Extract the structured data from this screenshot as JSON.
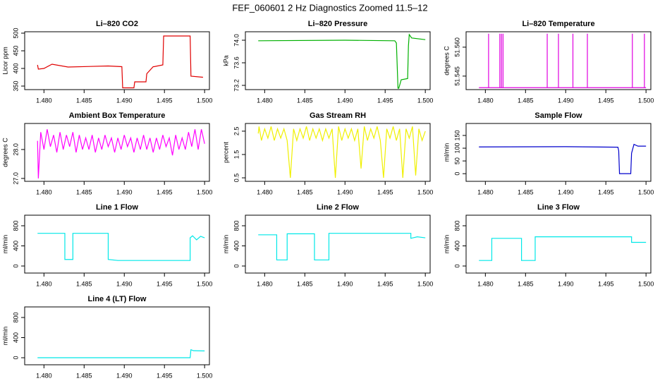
{
  "title": "FEF_060601  2 Hz Diagnostics Zoomed 11.5–12",
  "chart_data": [
    {
      "type": "line",
      "title": "Li–820 CO2",
      "ylabel": "Licor ppm",
      "x": [
        1.4792,
        1.4793,
        1.48,
        1.481,
        1.483,
        1.488,
        1.4897,
        1.4898,
        1.4912,
        1.4913,
        1.4927,
        1.4928,
        1.4936,
        1.4937,
        1.4948,
        1.4949,
        1.4982,
        1.4983,
        1.4998
      ],
      "series": [
        {
          "color": "#e00000",
          "values": [
            410,
            398,
            400,
            412,
            404,
            407,
            405,
            345,
            345,
            362,
            362,
            385,
            405,
            405,
            410,
            492,
            492,
            378,
            375
          ]
        }
      ],
      "xlim": [
        1.4776,
        1.5006
      ],
      "xticks": [
        {
          "value": 1.48,
          "label": "1.480"
        },
        1.485,
        {
          "value": 1.49,
          "label": "1.490"
        },
        1.495,
        {
          "value": 1.5,
          "label": "1.500"
        }
      ],
      "ylim": [
        340,
        504
      ],
      "yticks": [
        350,
        400,
        450,
        500
      ]
    },
    {
      "type": "line",
      "title": "Li–820 Pressure",
      "ylabel": "kPa",
      "x": [
        1.4792,
        1.49,
        1.4962,
        1.4964,
        1.4966,
        1.4967,
        1.497,
        1.4978,
        1.4979,
        1.498,
        1.4983,
        1.5
      ],
      "series": [
        {
          "color": "#00b000",
          "values": [
            73.99,
            74.0,
            73.99,
            73.95,
            73.15,
            73.15,
            73.3,
            73.32,
            73.9,
            74.1,
            74.04,
            74.01
          ]
        }
      ],
      "xlim": [
        1.4776,
        1.5006
      ],
      "xticks": [
        {
          "value": 1.48,
          "label": "1.480"
        },
        1.485,
        {
          "value": 1.49,
          "label": "1.490"
        },
        1.495,
        {
          "value": 1.5,
          "label": "1.500"
        }
      ],
      "ylim": [
        73.125,
        74.15
      ],
      "yticks": [
        73.2,
        73.6,
        {
          "value": 74,
          "label": "74.0"
        }
      ]
    },
    {
      "type": "line",
      "title": "Li–820 Temperature",
      "ylabel": "degrees C",
      "x": [
        1.4792,
        1.4804,
        1.4804,
        1.4804,
        1.4818,
        1.4818,
        1.4818,
        1.482,
        1.482,
        1.482,
        1.4822,
        1.4822,
        1.4822,
        1.4877,
        1.4877,
        1.4877,
        1.4891,
        1.4891,
        1.4891,
        1.4909,
        1.4909,
        1.4909,
        1.4927,
        1.4927,
        1.4927,
        1.4983,
        1.4983,
        1.4983,
        1.4998,
        1.4998,
        1.4998,
        1.5
      ],
      "series": [
        {
          "color": "#e000e0",
          "values": [
            51.539,
            51.539,
            51.567,
            51.539,
            51.539,
            51.567,
            51.539,
            51.539,
            51.567,
            51.539,
            51.539,
            51.567,
            51.539,
            51.539,
            51.567,
            51.539,
            51.539,
            51.567,
            51.539,
            51.539,
            51.567,
            51.539,
            51.539,
            51.567,
            51.539,
            51.539,
            51.567,
            51.539,
            51.539,
            51.567,
            51.539,
            51.539
          ]
        }
      ],
      "xlim": [
        1.4776,
        1.5006
      ],
      "xticks": [
        {
          "value": 1.48,
          "label": "1.480"
        },
        1.485,
        {
          "value": 1.49,
          "label": "1.490"
        },
        1.495,
        {
          "value": 1.5,
          "label": "1.500"
        }
      ],
      "ylim": [
        51.538,
        51.568
      ],
      "yticks": [
        51.545,
        {
          "value": 51.56,
          "label": "51.560"
        }
      ]
    },
    {
      "type": "line",
      "title": "Ambient Box Temperature",
      "ylabel": "degrees C",
      "x": [
        1.4792,
        1.4793,
        1.4796,
        1.48,
        1.4804,
        1.4808,
        1.4812,
        1.4816,
        1.482,
        1.4824,
        1.4828,
        1.4832,
        1.4836,
        1.484,
        1.4844,
        1.4848,
        1.4852,
        1.4856,
        1.486,
        1.4864,
        1.4868,
        1.4872,
        1.4876,
        1.488,
        1.4884,
        1.4888,
        1.4892,
        1.4896,
        1.49,
        1.4904,
        1.4908,
        1.4912,
        1.4916,
        1.492,
        1.4924,
        1.4928,
        1.4932,
        1.4936,
        1.494,
        1.4944,
        1.4948,
        1.4952,
        1.4956,
        1.496,
        1.4964,
        1.4968,
        1.4972,
        1.4976,
        1.498,
        1.4984,
        1.4988,
        1.4992,
        1.4996,
        1.5
      ],
      "series": [
        {
          "color": "#ff00ff",
          "values": [
            28.3,
            27.0,
            28.6,
            28.0,
            28.7,
            28.1,
            28.5,
            27.9,
            28.6,
            28.0,
            28.5,
            28.1,
            28.6,
            27.9,
            28.5,
            28.0,
            28.4,
            28.0,
            28.5,
            27.9,
            28.4,
            28.0,
            28.5,
            28.1,
            28.4,
            27.9,
            28.4,
            28.0,
            28.5,
            28.1,
            28.4,
            27.9,
            28.4,
            28.0,
            28.5,
            28.0,
            28.4,
            27.9,
            28.4,
            28.0,
            28.5,
            28.1,
            28.4,
            27.8,
            28.5,
            28.0,
            28.4,
            28.0,
            28.6,
            28.1,
            28.7,
            28.0,
            28.7,
            28.2
          ]
        }
      ],
      "xlim": [
        1.4776,
        1.5006
      ],
      "xticks": [
        {
          "value": 1.48,
          "label": "1.480"
        },
        1.485,
        {
          "value": 1.49,
          "label": "1.490"
        },
        1.495,
        {
          "value": 1.5,
          "label": "1.500"
        }
      ],
      "ylim": [
        26.9,
        28.9
      ],
      "yticks": [
        {
          "value": 27,
          "label": "27.0"
        },
        {
          "value": 28,
          "label": "28.0"
        }
      ]
    },
    {
      "type": "line",
      "title": "Gas Stream RH",
      "ylabel": "percent",
      "x": [
        1.4792,
        1.4793,
        1.4796,
        1.48,
        1.4804,
        1.4808,
        1.4812,
        1.4816,
        1.482,
        1.4824,
        1.4828,
        1.4832,
        1.4836,
        1.484,
        1.4844,
        1.4848,
        1.4852,
        1.4856,
        1.486,
        1.4864,
        1.4868,
        1.4872,
        1.4876,
        1.488,
        1.4884,
        1.4888,
        1.4892,
        1.4896,
        1.49,
        1.4904,
        1.4908,
        1.4912,
        1.4916,
        1.492,
        1.4924,
        1.4928,
        1.4932,
        1.4936,
        1.494,
        1.4944,
        1.4948,
        1.4952,
        1.4956,
        1.496,
        1.4964,
        1.4968,
        1.4972,
        1.4976,
        1.498,
        1.4984,
        1.4988,
        1.4992,
        1.4996,
        1.5
      ],
      "series": [
        {
          "color": "#f0f000",
          "values": [
            2.4,
            2.7,
            2.1,
            2.6,
            2.2,
            2.7,
            2.1,
            2.6,
            2.2,
            2.6,
            2.1,
            0.5,
            2.6,
            2.1,
            2.6,
            2.2,
            2.7,
            2.1,
            2.6,
            2.2,
            2.6,
            2.1,
            2.6,
            2.2,
            2.6,
            0.5,
            2.7,
            2.1,
            2.6,
            2.2,
            2.6,
            2.1,
            2.6,
            0.9,
            2.7,
            2.1,
            2.6,
            2.2,
            2.7,
            2.1,
            0.5,
            2.6,
            2.2,
            2.7,
            2.1,
            2.6,
            0.5,
            2.6,
            2.2,
            2.7,
            0.6,
            2.6,
            2.1,
            2.5
          ]
        }
      ],
      "xlim": [
        1.4776,
        1.5006
      ],
      "xticks": [
        {
          "value": 1.48,
          "label": "1.480"
        },
        1.485,
        {
          "value": 1.49,
          "label": "1.490"
        },
        1.495,
        {
          "value": 1.5,
          "label": "1.500"
        }
      ],
      "ylim": [
        0.35,
        2.83
      ],
      "yticks": [
        0.5,
        1.5,
        2.5
      ]
    },
    {
      "type": "line",
      "title": "Sample Flow",
      "ylabel": "ml/min",
      "x": [
        1.4792,
        1.49,
        1.4965,
        1.4966,
        1.4967,
        1.4981,
        1.4982,
        1.4985,
        1.499,
        1.5
      ],
      "series": [
        {
          "color": "#0000cc",
          "values": [
            105,
            106,
            104,
            90,
            0,
            0,
            80,
            115,
            108,
            108
          ]
        }
      ],
      "xlim": [
        1.4776,
        1.5006
      ],
      "xticks": [
        {
          "value": 1.48,
          "label": "1.480"
        },
        1.485,
        {
          "value": 1.49,
          "label": "1.490"
        },
        1.495,
        {
          "value": 1.5,
          "label": "1.500"
        }
      ],
      "ylim": [
        -30,
        197
      ],
      "yticks": [
        0,
        50,
        100,
        150
      ]
    },
    {
      "type": "line",
      "title": "Line 1 Flow",
      "ylabel": "ml/min",
      "x": [
        1.4792,
        1.4826,
        1.4826,
        1.4836,
        1.4836,
        1.488,
        1.488,
        1.4892,
        1.4982,
        1.4982,
        1.4985,
        1.499,
        1.4995,
        1.5
      ],
      "series": [
        {
          "color": "#00e8e8",
          "values": [
            650,
            650,
            130,
            130,
            650,
            650,
            130,
            110,
            110,
            560,
            600,
            520,
            590,
            560
          ]
        }
      ],
      "xlim": [
        1.4776,
        1.5006
      ],
      "xticks": [
        {
          "value": 1.48,
          "label": "1.480"
        },
        1.485,
        {
          "value": 1.49,
          "label": "1.490"
        },
        1.495,
        {
          "value": 1.5,
          "label": "1.500"
        }
      ],
      "ylim": [
        -140,
        1010
      ],
      "yticks": [
        0,
        400,
        800
      ]
    },
    {
      "type": "line",
      "title": "Line 2 Flow",
      "ylabel": "ml/min",
      "x": [
        1.4792,
        1.4815,
        1.4815,
        1.4828,
        1.4828,
        1.4862,
        1.4862,
        1.488,
        1.488,
        1.4982,
        1.4982,
        1.499,
        1.5
      ],
      "series": [
        {
          "color": "#00e8e8",
          "values": [
            620,
            620,
            120,
            120,
            640,
            640,
            120,
            120,
            650,
            650,
            550,
            580,
            560
          ]
        }
      ],
      "xlim": [
        1.4776,
        1.5006
      ],
      "xticks": [
        {
          "value": 1.48,
          "label": "1.480"
        },
        1.485,
        {
          "value": 1.49,
          "label": "1.490"
        },
        1.495,
        {
          "value": 1.5,
          "label": "1.500"
        }
      ],
      "ylim": [
        -140,
        1010
      ],
      "yticks": [
        0,
        400,
        800
      ]
    },
    {
      "type": "line",
      "title": "Line 3 Flow",
      "ylabel": "ml/min",
      "x": [
        1.4792,
        1.4808,
        1.4808,
        1.4845,
        1.4845,
        1.4862,
        1.4862,
        1.4982,
        1.4982,
        1.5
      ],
      "series": [
        {
          "color": "#00e8e8",
          "values": [
            110,
            110,
            550,
            550,
            110,
            110,
            580,
            580,
            470,
            470
          ]
        }
      ],
      "xlim": [
        1.4776,
        1.5006
      ],
      "xticks": [
        {
          "value": 1.48,
          "label": "1.480"
        },
        1.485,
        {
          "value": 1.49,
          "label": "1.490"
        },
        1.495,
        {
          "value": 1.5,
          "label": "1.500"
        }
      ],
      "ylim": [
        -140,
        1010
      ],
      "yticks": [
        0,
        400,
        800
      ]
    },
    {
      "type": "line",
      "title": "Line 4 (LT) Flow",
      "ylabel": "ml/min",
      "x": [
        1.4792,
        1.4982,
        1.4983,
        1.4986,
        1.5
      ],
      "series": [
        {
          "color": "#00e8e8",
          "values": [
            0,
            0,
            160,
            140,
            135
          ]
        }
      ],
      "xlim": [
        1.4776,
        1.5006
      ],
      "xticks": [
        {
          "value": 1.48,
          "label": "1.480"
        },
        1.485,
        {
          "value": 1.49,
          "label": "1.490"
        },
        1.495,
        {
          "value": 1.5,
          "label": "1.500"
        }
      ],
      "ylim": [
        -140,
        1010
      ],
      "yticks": [
        0,
        400,
        800
      ]
    }
  ]
}
